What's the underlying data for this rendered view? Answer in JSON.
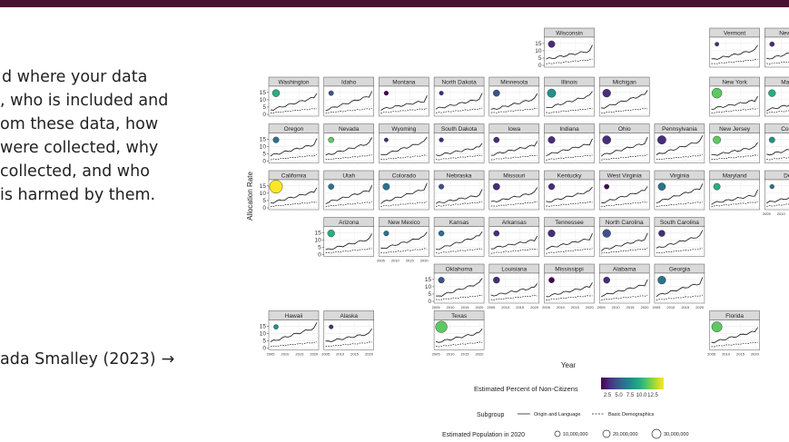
{
  "slide": {
    "text_lines": [
      "d where your data",
      ", who is included and",
      "om these data, how",
      "were collected, why",
      "collected, and who",
      "is harmed by them."
    ],
    "citation": "ada Smalley (2023)",
    "arrow": "→",
    "colors": {
      "topbar": "#4a1232"
    }
  },
  "chart_data": {
    "type": "line",
    "layout": "small-multiples geofacet map of US states",
    "xlabel": "Year",
    "ylabel": "Allocation Rate",
    "y_ticks": [
      "0",
      "5",
      "10",
      "15"
    ],
    "x_ticks": [
      "2005",
      "2010",
      "2015",
      "2020"
    ],
    "ylim": [
      0,
      18
    ],
    "xlim": [
      2005,
      2020
    ],
    "grid": true,
    "legend": {
      "color_title": "Estimated Percent of Non-Citizens",
      "color_ticks": [
        "2.5",
        "5.0",
        "7.5",
        "10.0",
        "12.5"
      ],
      "linetype_title": "Subgroup",
      "linetypes": [
        {
          "name": "Origin and Language",
          "style": "solid"
        },
        {
          "name": "Basic Demographics",
          "style": "dashed"
        }
      ],
      "size_title": "Estimated Population in 2020",
      "sizes": [
        "10,000,000",
        "20,000,000",
        "30,000,000"
      ]
    },
    "states": [
      {
        "name": "Wisconsin",
        "row": 0,
        "col": 5,
        "pct": 3,
        "pop": 5.9
      },
      {
        "name": "Vermont",
        "row": 0,
        "col": 8,
        "pct": 2,
        "pop": 0.6
      },
      {
        "name": "New Ha",
        "row": 0,
        "col": 9,
        "pct": 3,
        "pop": 1.4
      },
      {
        "name": "Washington",
        "row": 1,
        "col": 0,
        "pct": 8,
        "pop": 7.7
      },
      {
        "name": "Idaho",
        "row": 1,
        "col": 1,
        "pct": 4,
        "pop": 1.8
      },
      {
        "name": "Montana",
        "row": 1,
        "col": 2,
        "pct": 1,
        "pop": 1.1
      },
      {
        "name": "North Dakota",
        "row": 1,
        "col": 3,
        "pct": 2,
        "pop": 0.8
      },
      {
        "name": "Minnesota",
        "row": 1,
        "col": 4,
        "pct": 4,
        "pop": 5.7
      },
      {
        "name": "Illinois",
        "row": 1,
        "col": 5,
        "pct": 7,
        "pop": 12.8
      },
      {
        "name": "Michigan",
        "row": 1,
        "col": 6,
        "pct": 3,
        "pop": 10.1
      },
      {
        "name": "New York",
        "row": 1,
        "col": 8,
        "pct": 10,
        "pop": 20.2
      },
      {
        "name": "Massa",
        "row": 1,
        "col": 9,
        "pct": 8,
        "pop": 7.0
      },
      {
        "name": "Oregon",
        "row": 2,
        "col": 0,
        "pct": 6,
        "pop": 4.2
      },
      {
        "name": "Nevada",
        "row": 2,
        "col": 1,
        "pct": 10,
        "pop": 3.1
      },
      {
        "name": "Wyoming",
        "row": 2,
        "col": 2,
        "pct": 2,
        "pop": 0.6
      },
      {
        "name": "South Dakota",
        "row": 2,
        "col": 3,
        "pct": 2,
        "pop": 0.9
      },
      {
        "name": "Iowa",
        "row": 2,
        "col": 4,
        "pct": 3,
        "pop": 3.2
      },
      {
        "name": "Indiana",
        "row": 2,
        "col": 5,
        "pct": 3,
        "pop": 6.8
      },
      {
        "name": "Ohio",
        "row": 2,
        "col": 6,
        "pct": 2,
        "pop": 11.8
      },
      {
        "name": "Pennsylvania",
        "row": 2,
        "col": 7,
        "pct": 3,
        "pop": 13.0
      },
      {
        "name": "New Jersey",
        "row": 2,
        "col": 8,
        "pct": 10,
        "pop": 9.3
      },
      {
        "name": "Conne",
        "row": 2,
        "col": 9,
        "pct": 7,
        "pop": 3.6
      },
      {
        "name": "California",
        "row": 3,
        "col": 0,
        "pct": 13,
        "pop": 39.5
      },
      {
        "name": "Utah",
        "row": 3,
        "col": 1,
        "pct": 5,
        "pop": 3.3
      },
      {
        "name": "Colorado",
        "row": 3,
        "col": 2,
        "pct": 5,
        "pop": 5.8
      },
      {
        "name": "Nebraska",
        "row": 3,
        "col": 3,
        "pct": 4,
        "pop": 2.0
      },
      {
        "name": "Missouri",
        "row": 3,
        "col": 4,
        "pct": 2,
        "pop": 6.2
      },
      {
        "name": "Kentucky",
        "row": 3,
        "col": 5,
        "pct": 2,
        "pop": 4.5
      },
      {
        "name": "West Virginia",
        "row": 3,
        "col": 6,
        "pct": 1,
        "pop": 1.8
      },
      {
        "name": "Virginia",
        "row": 3,
        "col": 7,
        "pct": 6,
        "pop": 8.6
      },
      {
        "name": "Maryland",
        "row": 3,
        "col": 8,
        "pct": 8,
        "pop": 6.2
      },
      {
        "name": "Dela",
        "row": 3,
        "col": 9,
        "pct": 5,
        "pop": 1.0
      },
      {
        "name": "Arizona",
        "row": 4,
        "col": 1,
        "pct": 8,
        "pop": 7.2
      },
      {
        "name": "New Mexico",
        "row": 4,
        "col": 2,
        "pct": 6,
        "pop": 2.1
      },
      {
        "name": "Kansas",
        "row": 4,
        "col": 3,
        "pct": 5,
        "pop": 2.9
      },
      {
        "name": "Arkansas",
        "row": 4,
        "col": 4,
        "pct": 3,
        "pop": 3.0
      },
      {
        "name": "Tennessee",
        "row": 4,
        "col": 5,
        "pct": 3,
        "pop": 6.9
      },
      {
        "name": "North Carolina",
        "row": 4,
        "col": 6,
        "pct": 4,
        "pop": 10.4
      },
      {
        "name": "South Carolina",
        "row": 4,
        "col": 7,
        "pct": 3,
        "pop": 5.1
      },
      {
        "name": "Oklahoma",
        "row": 5,
        "col": 3,
        "pct": 4,
        "pop": 4.0
      },
      {
        "name": "Louisiana",
        "row": 5,
        "col": 4,
        "pct": 2,
        "pop": 4.7
      },
      {
        "name": "Mississippi",
        "row": 5,
        "col": 5,
        "pct": 1,
        "pop": 3.0
      },
      {
        "name": "Alabama",
        "row": 5,
        "col": 6,
        "pct": 2,
        "pop": 5.0
      },
      {
        "name": "Georgia",
        "row": 5,
        "col": 7,
        "pct": 6,
        "pop": 10.7
      },
      {
        "name": "Hawaii",
        "row": 6,
        "col": 0,
        "pct": 7,
        "pop": 1.5
      },
      {
        "name": "Alaska",
        "row": 6,
        "col": 1,
        "pct": 3,
        "pop": 0.7
      },
      {
        "name": "Texas",
        "row": 6,
        "col": 3,
        "pct": 10,
        "pop": 29.1
      },
      {
        "name": "Florida",
        "row": 6,
        "col": 8,
        "pct": 10,
        "pop": 21.5
      }
    ]
  }
}
